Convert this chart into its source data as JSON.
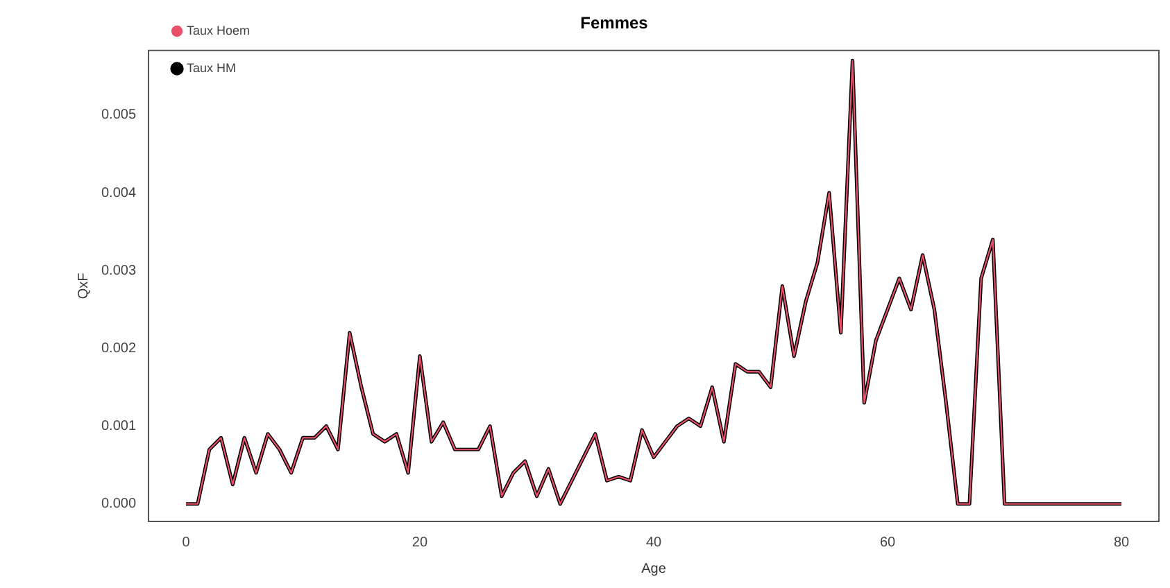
{
  "chart_data": {
    "type": "line",
    "title": "Femmes",
    "xlabel": "Age",
    "ylabel": "QxF",
    "x": [
      0,
      1,
      2,
      3,
      4,
      5,
      6,
      7,
      8,
      9,
      10,
      11,
      12,
      13,
      14,
      15,
      16,
      17,
      18,
      19,
      20,
      21,
      22,
      23,
      24,
      25,
      26,
      27,
      28,
      29,
      30,
      31,
      32,
      33,
      34,
      35,
      36,
      37,
      38,
      39,
      40,
      41,
      42,
      43,
      44,
      45,
      46,
      47,
      48,
      49,
      50,
      51,
      52,
      53,
      54,
      55,
      56,
      57,
      58,
      59,
      60,
      61,
      62,
      63,
      64,
      65,
      66,
      67,
      68,
      69,
      70,
      71,
      72,
      73,
      74,
      75,
      76,
      77,
      78,
      79,
      80
    ],
    "series": [
      {
        "name": "Taux HM",
        "color": "#000000",
        "values": [
          0,
          0,
          0.0007,
          0.00085,
          0.00025,
          0.00085,
          0.0004,
          0.0009,
          0.0007,
          0.0004,
          0.00085,
          0.00085,
          0.001,
          0.0007,
          0.0022,
          0.0015,
          0.0009,
          0.0008,
          0.0009,
          0.0004,
          0.0019,
          0.0008,
          0.00105,
          0.0007,
          0.0007,
          0.0007,
          0.001,
          0.0001,
          0.0004,
          0.00055,
          0.0001,
          0.00045,
          0,
          0.0003,
          0.0006,
          0.0009,
          0.0003,
          0.00035,
          0.0003,
          0.00095,
          0.0006,
          0.0008,
          0.001,
          0.0011,
          0.001,
          0.0015,
          0.0008,
          0.0018,
          0.0017,
          0.0017,
          0.0015,
          0.0028,
          0.0019,
          0.0026,
          0.0031,
          0.004,
          0.0022,
          0.0057,
          0.0013,
          0.0021,
          0.0025,
          0.0029,
          0.0025,
          0.0032,
          0.0025,
          0.0013,
          0,
          0,
          0.0029,
          0.0034,
          0,
          0,
          0,
          0,
          0,
          0,
          0,
          0,
          0,
          0,
          0
        ]
      },
      {
        "name": "Taux Hoem",
        "color": "#e8506a",
        "values": [
          0,
          0,
          0.0007,
          0.00085,
          0.00025,
          0.00085,
          0.0004,
          0.0009,
          0.0007,
          0.0004,
          0.00085,
          0.00085,
          0.001,
          0.0007,
          0.0022,
          0.0015,
          0.0009,
          0.0008,
          0.0009,
          0.0004,
          0.0019,
          0.0008,
          0.00105,
          0.0007,
          0.0007,
          0.0007,
          0.001,
          0.0001,
          0.0004,
          0.00055,
          0.0001,
          0.00045,
          0,
          0.0003,
          0.0006,
          0.0009,
          0.0003,
          0.00035,
          0.0003,
          0.00095,
          0.0006,
          0.0008,
          0.001,
          0.0011,
          0.001,
          0.0015,
          0.0008,
          0.0018,
          0.0017,
          0.0017,
          0.0015,
          0.0028,
          0.0019,
          0.0026,
          0.0031,
          0.004,
          0.0022,
          0.0057,
          0.0013,
          0.0021,
          0.0025,
          0.0029,
          0.0025,
          0.0032,
          0.0025,
          0.0013,
          0,
          0,
          0.0029,
          0.0034,
          0,
          0,
          0,
          0,
          0,
          0,
          0,
          0,
          0,
          0,
          0
        ]
      }
    ],
    "xlim": [
      -3.2,
      83.2
    ],
    "xticks": [
      0,
      20,
      40,
      60,
      80
    ],
    "ylim": [
      -0.000225,
      0.00583
    ],
    "yticks": [
      {
        "value": 0,
        "label": "0.000"
      },
      {
        "value": 0.001,
        "label": "0.001"
      },
      {
        "value": 0.002,
        "label": "0.002"
      },
      {
        "value": 0.003,
        "label": "0.003"
      },
      {
        "value": 0.004,
        "label": "0.004"
      },
      {
        "value": 0.005,
        "label": "0.005"
      }
    ],
    "grid": false,
    "legend": "top left",
    "marker": "none",
    "line_style": "solid"
  }
}
